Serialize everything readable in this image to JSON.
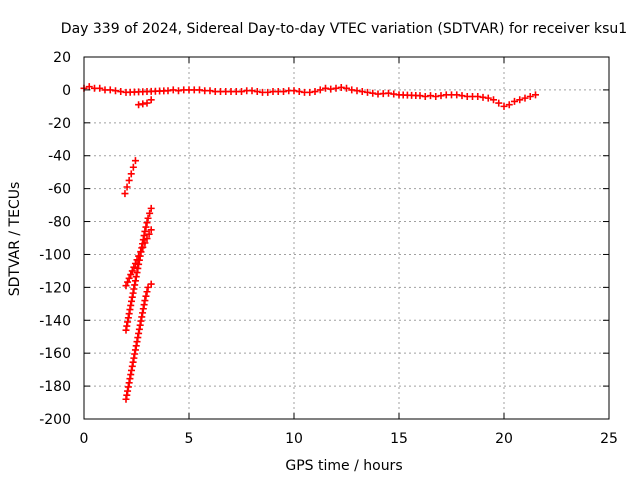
{
  "chart_data": {
    "type": "scatter",
    "title": "Day 339 of 2024, Sidereal Day-to-day VTEC variation (SDTVAR) for receiver ksu1",
    "xlabel": "GPS time / hours",
    "ylabel": "SDTVAR / TECUs",
    "xlim": [
      0,
      25
    ],
    "ylim": [
      -200,
      20
    ],
    "xticks": [
      0,
      5,
      10,
      15,
      20,
      25
    ],
    "yticks": [
      20,
      0,
      -20,
      -40,
      -60,
      -80,
      -100,
      -120,
      -140,
      -160,
      -180,
      -200
    ],
    "grid": true,
    "marker": "+",
    "color": "#ff0000",
    "series": [
      {
        "name": "main-trace",
        "x": [
          0,
          0.25,
          0.5,
          0.75,
          1,
          1.25,
          1.5,
          1.75,
          2,
          4,
          4.25,
          4.5,
          4.75,
          5,
          5.5,
          5.75,
          6,
          6.25,
          6.5,
          7,
          7.25,
          7.5,
          7.75,
          8,
          8.25,
          8.5,
          8.75,
          9,
          9.25,
          9.5,
          9.75,
          10,
          10.25,
          10.5,
          10.75,
          11,
          11.25,
          11.5,
          11.75,
          12,
          12.25,
          12.5,
          12.75,
          13,
          13.25,
          13.5,
          13.75,
          14,
          14.5,
          14.75,
          15,
          16,
          16.25,
          16.5,
          16.75,
          17,
          17.25,
          17.5,
          17.75,
          18,
          18.25,
          18.5,
          18.75,
          19,
          19.25,
          19.5,
          19.75,
          20,
          20.25,
          20.5,
          20.75,
          21,
          21.25,
          21.5
        ],
        "y": [
          1,
          2,
          1,
          1,
          0,
          0,
          -0.5,
          -1,
          -1.5,
          -0.5,
          0,
          -0.5,
          0,
          0,
          0,
          -0.5,
          -0.5,
          -1,
          -1,
          -1,
          -1,
          -1,
          -0.5,
          -0.5,
          -1,
          -1.5,
          -1.5,
          -1,
          -1,
          -1,
          -0.5,
          -0.5,
          -1,
          -1.5,
          -1.5,
          -1,
          0,
          1,
          0.5,
          1,
          1.5,
          1,
          0,
          -0.5,
          -1,
          -1.5,
          -2,
          -2.5,
          -2,
          -2.5,
          -3,
          -3.5,
          -4,
          -3.5,
          -4,
          -3.5,
          -3,
          -3,
          -3,
          -3.5,
          -4,
          -4,
          -4,
          -4.5,
          -5,
          -6,
          -8,
          -10,
          -9,
          -7,
          -6,
          -5,
          -4,
          -3
        ]
      },
      {
        "name": "short-segment",
        "x": [
          2.6,
          2.8,
          3.0,
          3.2
        ],
        "y": [
          -9,
          -8.5,
          -8,
          -6
        ]
      },
      {
        "name": "track-1",
        "x": [
          1.95,
          2.05,
          2.15,
          2.25,
          2.35,
          2.45
        ],
        "y": [
          -63,
          -59,
          -55,
          -51,
          -47,
          -43
        ]
      },
      {
        "name": "track-2",
        "x": [
          2,
          2.15,
          2.3,
          2.45,
          2.6,
          2.75,
          2.9,
          3.05,
          3.2
        ],
        "y": [
          -146,
          -136,
          -126,
          -116,
          -106,
          -96,
          -86,
          -78,
          -72
        ]
      },
      {
        "name": "track-3",
        "x": [
          2,
          2.3,
          2.6,
          2.9,
          3.2
        ],
        "y": [
          -119,
          -110,
          -101,
          -93,
          -85
        ]
      },
      {
        "name": "track-4",
        "x": [
          2,
          2.15,
          2.3,
          2.45,
          2.6,
          2.75,
          2.9,
          3.05,
          3.2
        ],
        "y": [
          -188,
          -178,
          -168,
          -158,
          -148,
          -138,
          -128,
          -120,
          -118
        ]
      }
    ]
  }
}
